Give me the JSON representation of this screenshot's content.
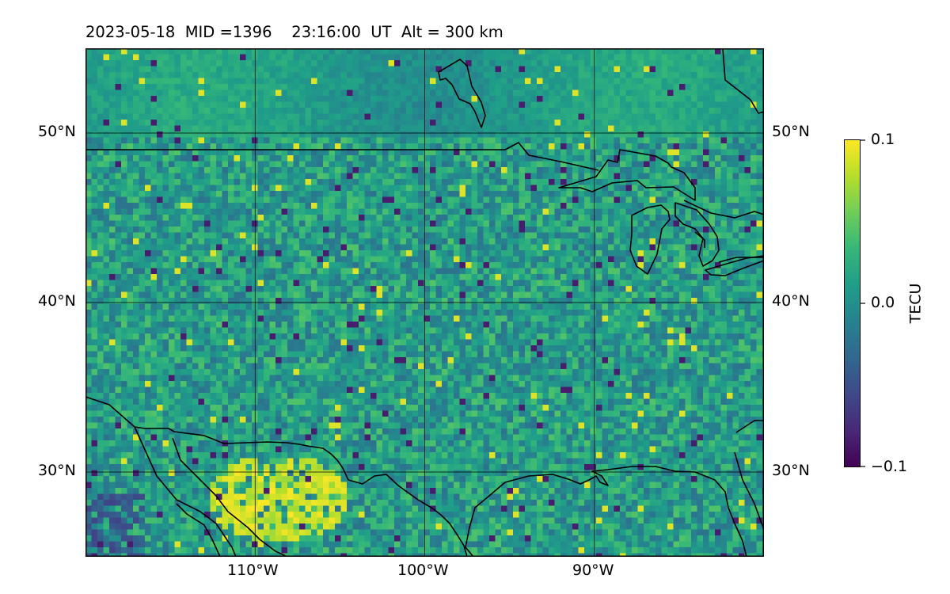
{
  "title": {
    "date": "2023-05-18",
    "mid": "MID =1396",
    "time": "23:16:00",
    "time_zone": "UT",
    "altitude": "Alt = 300 km"
  },
  "map": {
    "projection": "equirectangular",
    "lon_range": [
      -120,
      -80
    ],
    "lat_range": [
      25,
      55
    ],
    "gridlines": true,
    "lon_ticks": [
      {
        "value": -110,
        "label": "110°W"
      },
      {
        "value": -100,
        "label": "100°W"
      },
      {
        "value": -90,
        "label": "90°W"
      }
    ],
    "lat_ticks": [
      {
        "value": 50,
        "label": "50°N"
      },
      {
        "value": 40,
        "label": "40°N"
      },
      {
        "value": 30,
        "label": "30°N"
      }
    ],
    "coastline_color": "#000000",
    "features": [
      "coastlines",
      "us-canada-border",
      "us-mexico-border",
      "great-lakes"
    ]
  },
  "colorbar": {
    "label": "TECU",
    "colormap": "viridis",
    "range": [
      -0.1,
      0.1
    ],
    "ticks": [
      {
        "value": 0.1,
        "label": "0.1"
      },
      {
        "value": 0.0,
        "label": "0.0"
      },
      {
        "value": -0.1,
        "label": "−0.1"
      }
    ],
    "colors": [
      "#440154",
      "#482878",
      "#3e4989",
      "#31688e",
      "#26828e",
      "#1f9e89",
      "#35b779",
      "#6ece58",
      "#b5de2b",
      "#fde725"
    ]
  }
}
